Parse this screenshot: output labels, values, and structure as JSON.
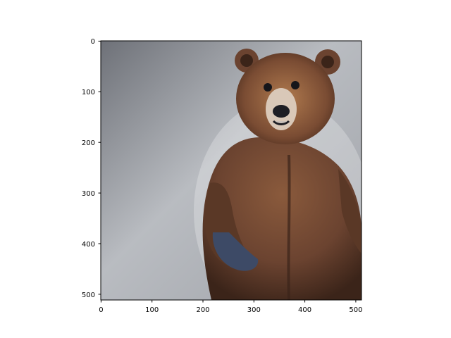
{
  "figure": {
    "background": "#ffffff",
    "axes_color": "#000000"
  },
  "image": {
    "subject": "brown bear standing upright",
    "backdrop_color_light": "#c9ccd1",
    "backdrop_color_dark": "#6e7178",
    "fur_color": "#6b4330",
    "fur_highlight": "#b07a4e",
    "snout_color": "#d9c8b8",
    "nose_color": "#1e1e24",
    "paw_color": "#3d4a66"
  },
  "x_axis": {
    "ticks": [
      0,
      100,
      200,
      300,
      400,
      500
    ],
    "labels": [
      "0",
      "100",
      "200",
      "300",
      "400",
      "500"
    ],
    "range": [
      0,
      512
    ]
  },
  "y_axis": {
    "ticks": [
      0,
      100,
      200,
      300,
      400,
      500
    ],
    "labels": [
      "0",
      "100",
      "200",
      "300",
      "400",
      "500"
    ],
    "range": [
      0,
      512
    ],
    "inverted": true
  }
}
